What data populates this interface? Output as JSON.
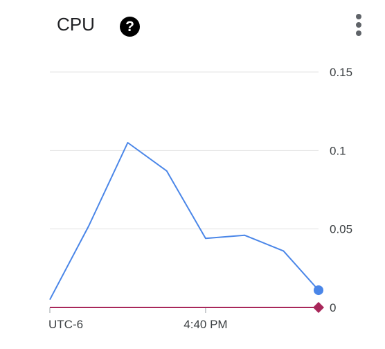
{
  "card": {
    "title": "CPU",
    "help_icon": "question-circle-icon",
    "menu_icon": "more-vert-icon"
  },
  "chart_data": {
    "type": "line",
    "title": "CPU",
    "xlabel": "",
    "ylabel": "",
    "x_tick_labels": [
      "UTC-6",
      "4:40 PM"
    ],
    "y_ticks": [
      0,
      0.05,
      0.1,
      0.15
    ],
    "y_tick_labels": [
      "0",
      "0.05",
      "0.1",
      "0.15"
    ],
    "ylim": [
      0,
      0.15
    ],
    "grid": true,
    "series": [
      {
        "color": "#4a86e8",
        "marker": "circle",
        "points": [
          {
            "x": 0,
            "y": 0.005
          },
          {
            "x": 1,
            "y": 0.052
          },
          {
            "x": 2,
            "y": 0.105
          },
          {
            "x": 3,
            "y": 0.087
          },
          {
            "x": 4,
            "y": 0.044
          },
          {
            "x": 5,
            "y": 0.046
          },
          {
            "x": 6,
            "y": 0.036
          },
          {
            "x": 6.9,
            "y": 0.011
          }
        ]
      },
      {
        "color": "#a8275a",
        "marker": "diamond",
        "points": [
          {
            "x": 0,
            "y": 0
          },
          {
            "x": 6.9,
            "y": 0
          }
        ]
      }
    ],
    "xlim": [
      0,
      6.9
    ],
    "x_tick_positions": [
      0,
      4
    ]
  }
}
